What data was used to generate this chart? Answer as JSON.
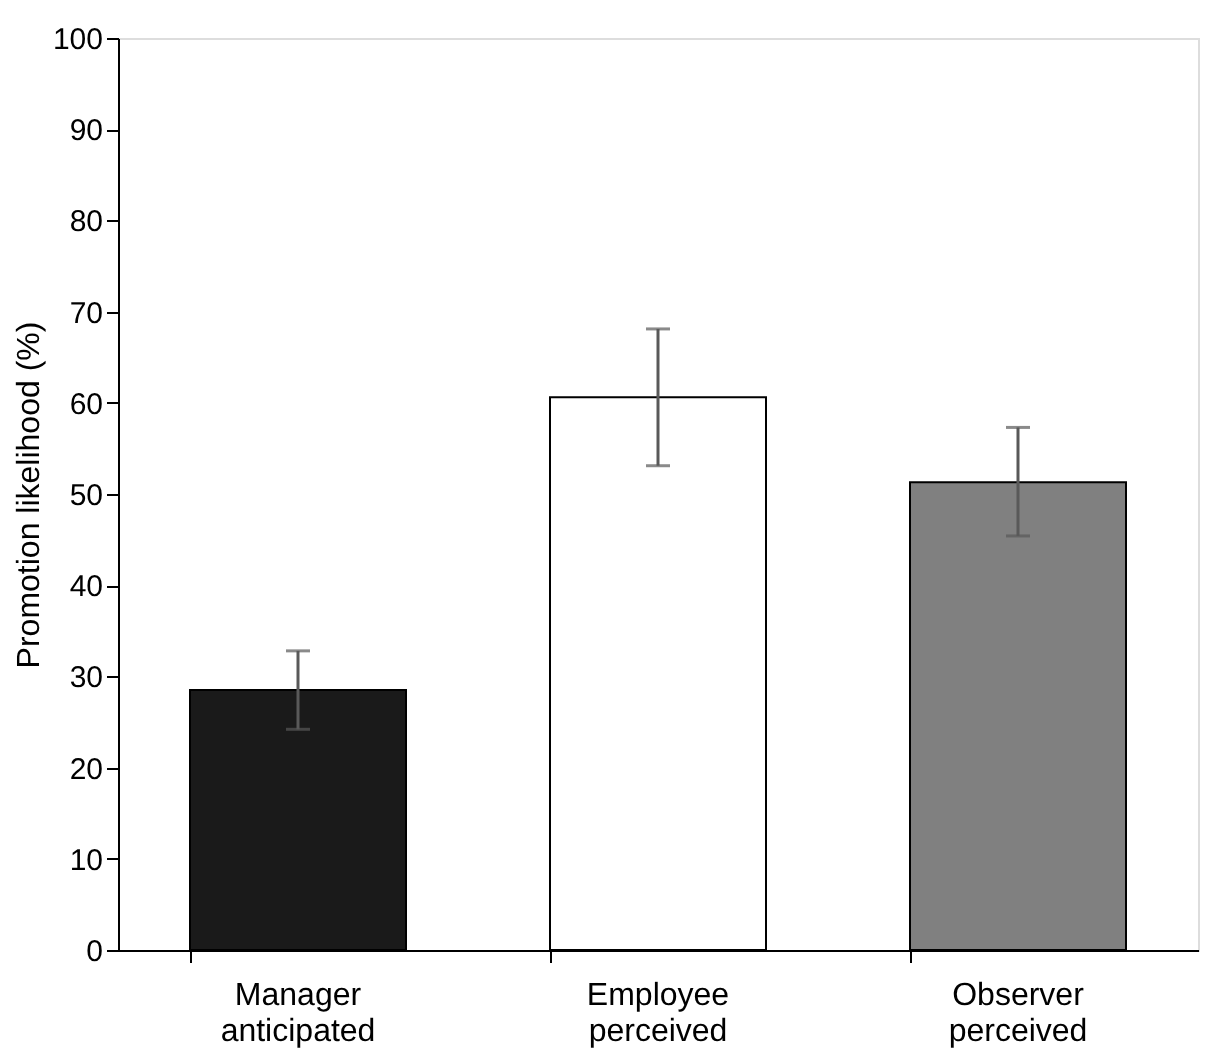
{
  "chart_data": {
    "type": "bar",
    "ylabel": "Promotion likelihood (%)",
    "categories": [
      "Manager anticipated",
      "Employee perceived",
      "Observer perceived"
    ],
    "values": [
      28.5,
      60.6,
      51.3
    ],
    "colors": [
      "#1a1a1a",
      "#ffffff",
      "#808080"
    ],
    "errors": [
      [
        24.2,
        32.8
      ],
      [
        53.1,
        68.1
      ],
      [
        45.4,
        57.3
      ]
    ],
    "ylim": [
      0,
      100
    ],
    "yticks": [
      0,
      10,
      20,
      30,
      40,
      50,
      60,
      70,
      80,
      90,
      100
    ],
    "grid": false
  }
}
